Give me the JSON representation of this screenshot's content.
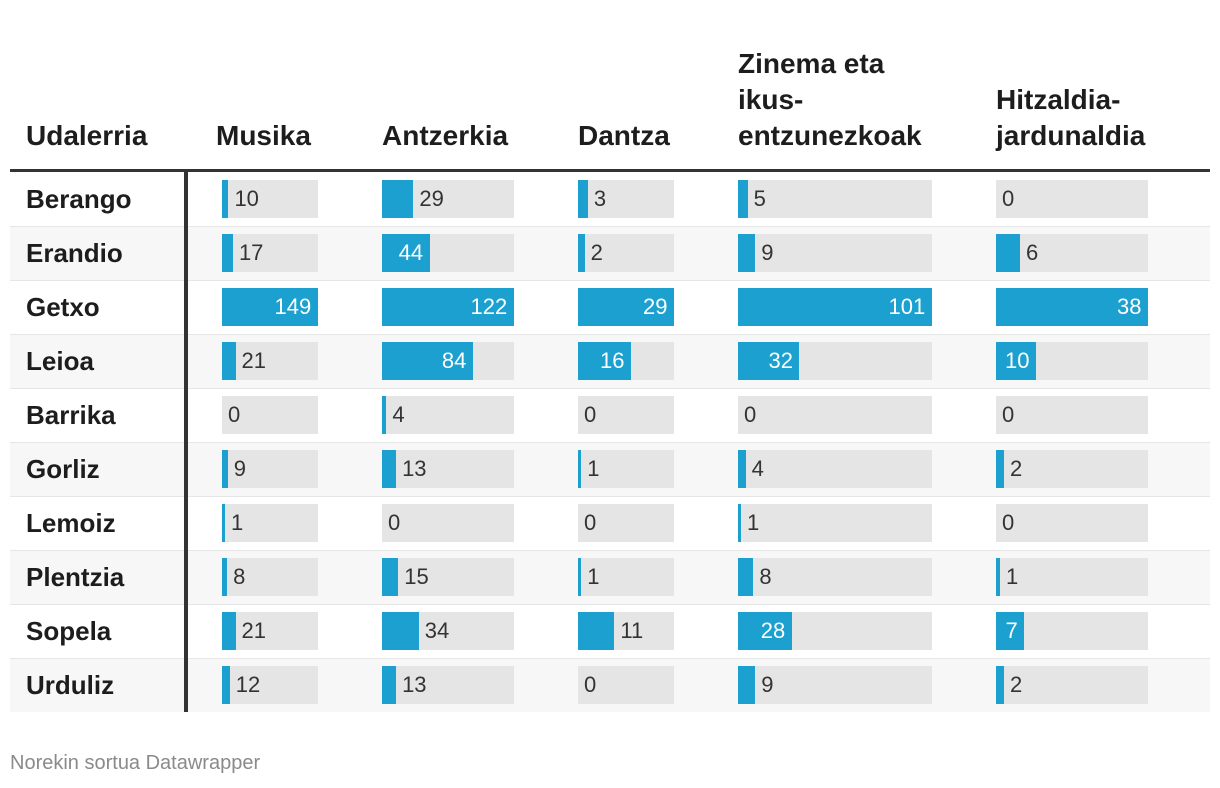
{
  "chart_data": {
    "type": "table",
    "columns": [
      "Udalerria",
      "Musika",
      "Antzerkia",
      "Dantza",
      "Zinema eta ikus-entzunezkoak",
      "Hitzaldia-jardunaldia"
    ],
    "header_lines": [
      [
        "Udalerria"
      ],
      [
        "Musika"
      ],
      [
        "Antzerkia"
      ],
      [
        "Dantza"
      ],
      [
        "Zinema eta",
        "ikus-",
        "entzunezkoak"
      ],
      [
        "Hitzaldia-",
        "jardunaldia"
      ]
    ],
    "rows": [
      {
        "name": "Berango",
        "values": [
          10,
          29,
          3,
          5,
          0
        ]
      },
      {
        "name": "Erandio",
        "values": [
          17,
          44,
          2,
          9,
          6
        ]
      },
      {
        "name": "Getxo",
        "values": [
          149,
          122,
          29,
          101,
          38
        ]
      },
      {
        "name": "Leioa",
        "values": [
          21,
          84,
          16,
          32,
          10
        ]
      },
      {
        "name": "Barrika",
        "values": [
          0,
          4,
          0,
          0,
          0
        ]
      },
      {
        "name": "Gorliz",
        "values": [
          9,
          13,
          1,
          4,
          2
        ]
      },
      {
        "name": "Lemoiz",
        "values": [
          1,
          0,
          0,
          1,
          0
        ]
      },
      {
        "name": "Plentzia",
        "values": [
          8,
          15,
          1,
          8,
          1
        ]
      },
      {
        "name": "Sopela",
        "values": [
          21,
          34,
          11,
          28,
          7
        ]
      },
      {
        "name": "Urduliz",
        "values": [
          12,
          13,
          0,
          9,
          2
        ]
      }
    ],
    "bar_color": "#1ba0d0",
    "track_color": "#e5e5e5"
  },
  "footer": "Norekin sortua Datawrapper"
}
